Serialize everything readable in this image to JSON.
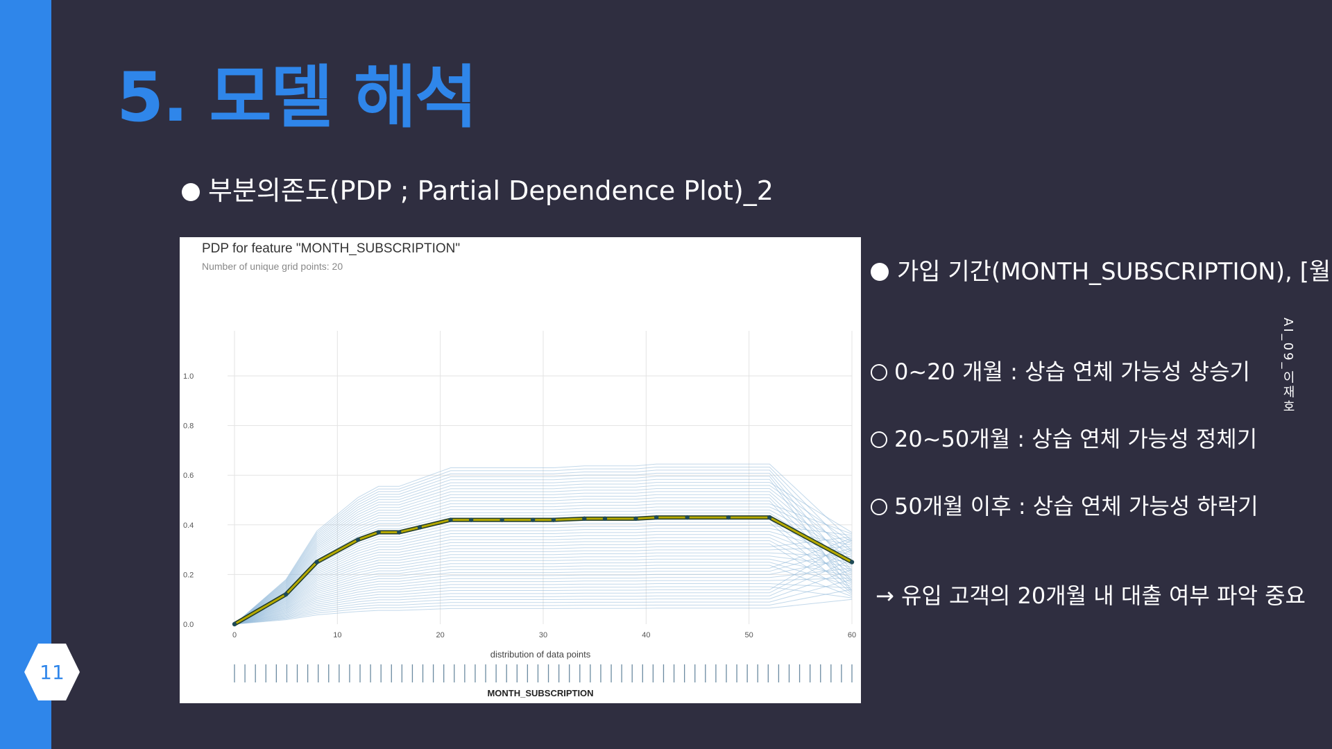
{
  "slide": {
    "title": "5. 모델 해석",
    "subtitle": "부분의존도(PDP ; Partial Dependence Plot)_2",
    "page_number": "11",
    "author": "AI_09_이재호",
    "accent_color": "#2f86ea",
    "background_color": "#2f2e40"
  },
  "notes": {
    "feature_heading": "가입 기간(MONTH_SUBSCRIPTION), [월]",
    "items": [
      "0~20 개월 : 상습 연체 가능성 상승기",
      "20~50개월 : 상습 연체 가능성 정체기",
      "50개월 이후 : 상습 연체 가능성 하락기"
    ],
    "conclusion": "→ 유입 고객의 20개월 내 대출 여부 파악 중요"
  },
  "chart_data": {
    "type": "line",
    "title": "PDP for feature \"MONTH_SUBSCRIPTION\"",
    "subtitle": "Number of unique grid points: 20",
    "xlabel": "MONTH_SUBSCRIPTION",
    "dist_label": "distribution of data points",
    "xlim": [
      0,
      60
    ],
    "ylim": [
      0,
      1.0
    ],
    "x_ticks": [
      0,
      10,
      20,
      30,
      40,
      50,
      60
    ],
    "y_ticks": [
      0.0,
      0.2,
      0.4,
      0.6,
      0.8,
      1.0
    ],
    "y_tick_labels": [
      "0.0",
      "0.2",
      "0.4",
      "0.6",
      "0.8",
      "1.0"
    ],
    "grid": true,
    "series": [
      {
        "color": "#b5a800",
        "x": [
          0,
          5,
          8,
          12,
          14,
          16,
          18,
          21,
          23,
          26,
          29,
          31,
          34,
          36,
          39,
          41,
          44,
          48,
          52,
          60
        ],
        "values": [
          0.0,
          0.12,
          0.25,
          0.34,
          0.37,
          0.37,
          0.39,
          0.42,
          0.42,
          0.42,
          0.42,
          0.42,
          0.425,
          0.425,
          0.425,
          0.43,
          0.43,
          0.43,
          0.43,
          0.25
        ]
      }
    ],
    "ice_line_color": "#8fb8d8",
    "marker_color": "#1f4a56",
    "rug_count": 60
  }
}
